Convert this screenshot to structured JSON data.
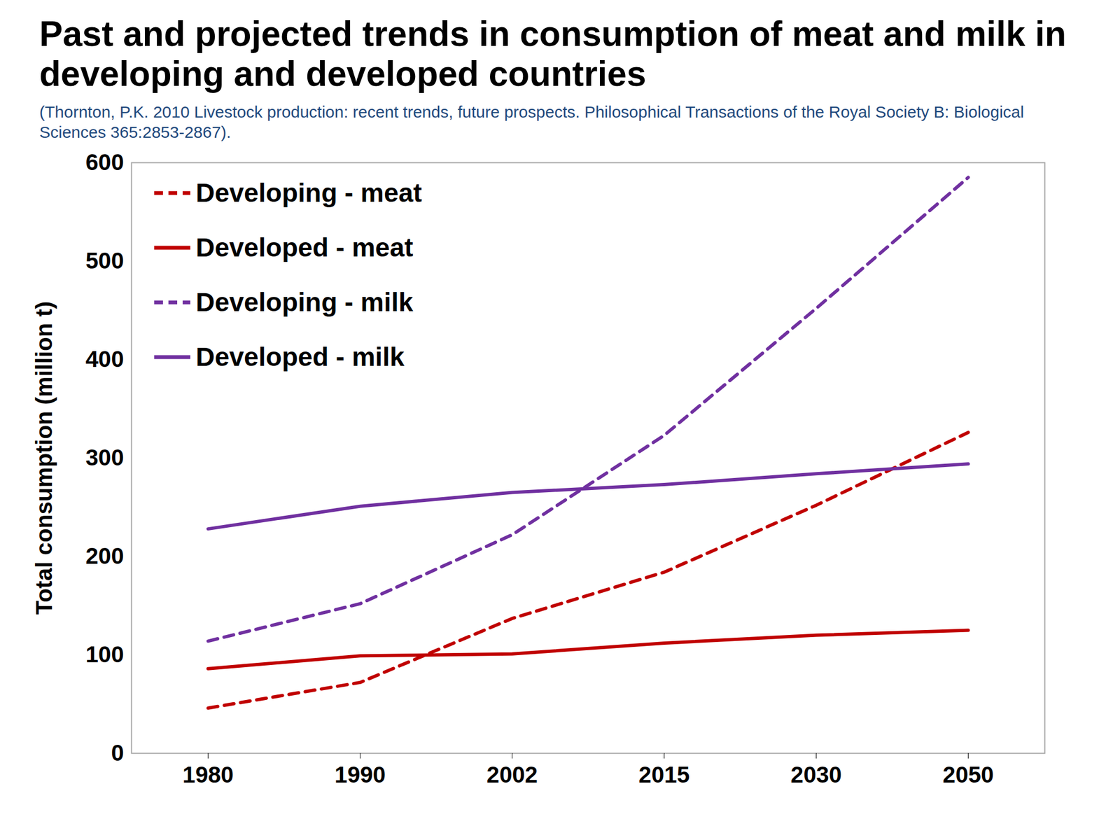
{
  "chart_data": {
    "type": "line",
    "title": "Past and projected trends in consumption of meat and milk in developing and developed countries",
    "subtitle": "(Thornton, P.K. 2010 Livestock production: recent trends, future prospects. Philosophical Transactions of the Royal Society B: Biological Sciences 365:2853-2867).",
    "y_label": "Total consumption (million t)",
    "categories": [
      "1980",
      "1990",
      "2002",
      "2015",
      "2030",
      "2050"
    ],
    "ylim": [
      0,
      600
    ],
    "yticks": [
      0,
      100,
      200,
      300,
      400,
      500,
      600
    ],
    "grid": false,
    "legend": "upper left",
    "series": [
      {
        "name": "Developing - meat",
        "color": "#c00000",
        "line_style": "dashed",
        "values": [
          46,
          72,
          137,
          184,
          252,
          326
        ]
      },
      {
        "name": "Developed - meat",
        "color": "#c00000",
        "line_style": "solid",
        "values": [
          86,
          99,
          101,
          112,
          120,
          125
        ]
      },
      {
        "name": "Developing - milk",
        "color": "#7030a0",
        "line_style": "dashed",
        "values": [
          114,
          152,
          222,
          323,
          452,
          585
        ]
      },
      {
        "name": "Developed - milk",
        "color": "#7030a0",
        "line_style": "solid",
        "values": [
          228,
          251,
          265,
          273,
          284,
          294
        ]
      }
    ]
  }
}
